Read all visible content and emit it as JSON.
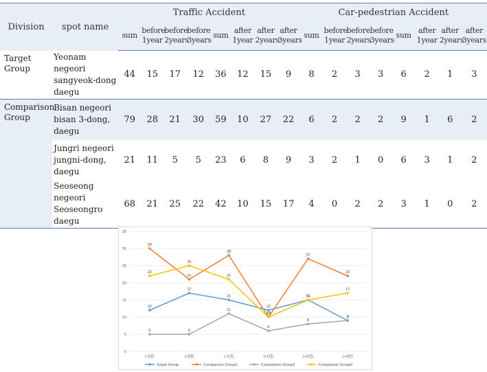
{
  "table": {
    "headers": {
      "division": "Division",
      "spot_name": "spot name",
      "traffic_accident": "Traffic Accident",
      "car_pedestrian_accident": "Car-pedestrian Accident",
      "sub": [
        "sum",
        "before 1year",
        "before 2years",
        "before 3years",
        "sum",
        "after 1year",
        "after 2years",
        "after 3years",
        "sum",
        "before 1year",
        "before 2years",
        "before 3years",
        "sum",
        "after 1year",
        "after 2years",
        "after 3years"
      ]
    },
    "rows": [
      {
        "division": "Target Group",
        "spot": "Yeonam negeori sangyeok-dong daegu",
        "values": [
          "44",
          "15",
          "17",
          "12",
          "36",
          "12",
          "15",
          "9",
          "8",
          "2",
          "3",
          "3",
          "6",
          "2",
          "1",
          "3"
        ]
      },
      {
        "division": "Comparison Group",
        "spot": "Bisan negeori bisan 3-dong, daegu",
        "values": [
          "79",
          "28",
          "21",
          "30",
          "59",
          "10",
          "27",
          "22",
          "6",
          "2",
          "2",
          "2",
          "9",
          "1",
          "6",
          "2"
        ]
      },
      {
        "division": "",
        "spot": "Jungri negeori jungni-dong, daegu",
        "values": [
          "21",
          "11",
          "5",
          "5",
          "23",
          "6",
          "8",
          "9",
          "3",
          "2",
          "1",
          "0",
          "6",
          "3",
          "1",
          "2"
        ]
      },
      {
        "division": "",
        "spot": "Seoseong negeori Seoseongro daegu",
        "values": [
          "68",
          "21",
          "25",
          "22",
          "42",
          "10",
          "15",
          "17",
          "4",
          "0",
          "2",
          "2",
          "3",
          "1",
          "0",
          "2"
        ]
      }
    ]
  },
  "chart_data": {
    "type": "line",
    "categories": [
      "(-3년)",
      "(-2년)",
      "(-1년)",
      "(+1년)",
      "(+2년)",
      "(+3년)"
    ],
    "ylim": [
      0,
      35
    ],
    "yticks": [
      0,
      5,
      10,
      15,
      20,
      25,
      30,
      35
    ],
    "legend_position": "bottom",
    "grid": true,
    "series": [
      {
        "name": "Target Group",
        "color": "#5b9bd5",
        "values": [
          12,
          17,
          15,
          12,
          15,
          9
        ]
      },
      {
        "name": "Comparison Group1",
        "color": "#ed7d31",
        "values": [
          30,
          21,
          28,
          10,
          27,
          22
        ]
      },
      {
        "name": "Comparison Group2",
        "color": "#a5a5a5",
        "values": [
          5,
          5,
          11,
          6,
          8,
          9
        ]
      },
      {
        "name": "Comparison Group3",
        "color": "#ffc000",
        "values": [
          22,
          25,
          21,
          10,
          15,
          17
        ]
      }
    ]
  }
}
